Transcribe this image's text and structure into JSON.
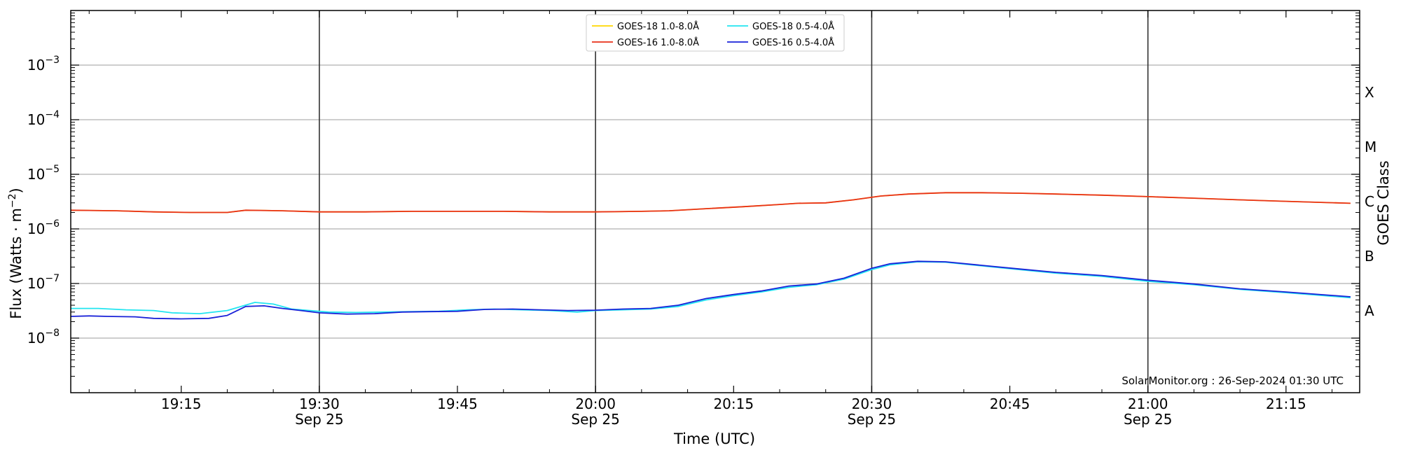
{
  "chart_data": {
    "type": "line",
    "title": "",
    "xlabel": "Time (UTC)",
    "ylabel": "Flux (Watts · m⁻²)",
    "y2label": "GOES Class",
    "credit": "SolarMonitor.org : 26-Sep-2024 01:30 UTC",
    "y_scale": "log",
    "ylim": [
      1e-09,
      0.01
    ],
    "xlim": [
      "19:03",
      "21:23"
    ],
    "grid": "horizontal at each decade",
    "legend_position": "top-center",
    "y_ticks": [
      {
        "value": 1e-08,
        "label": "10",
        "exp": "−8"
      },
      {
        "value": 1e-07,
        "label": "10",
        "exp": "−7"
      },
      {
        "value": 1e-06,
        "label": "10",
        "exp": "−6"
      },
      {
        "value": 1e-05,
        "label": "10",
        "exp": "−5"
      },
      {
        "value": 0.0001,
        "label": "10",
        "exp": "−4"
      },
      {
        "value": 0.001,
        "label": "10",
        "exp": "−3"
      }
    ],
    "x_ticks": [
      {
        "time": "19:15",
        "label": "19:15",
        "sub": ""
      },
      {
        "time": "19:30",
        "label": "19:30",
        "sub": "Sep 25"
      },
      {
        "time": "19:45",
        "label": "19:45",
        "sub": ""
      },
      {
        "time": "20:00",
        "label": "20:00",
        "sub": "Sep 25"
      },
      {
        "time": "20:15",
        "label": "20:15",
        "sub": ""
      },
      {
        "time": "20:30",
        "label": "20:30",
        "sub": "Sep 25"
      },
      {
        "time": "20:45",
        "label": "20:45",
        "sub": ""
      },
      {
        "time": "21:00",
        "label": "21:00",
        "sub": "Sep 25"
      },
      {
        "time": "21:15",
        "label": "21:15",
        "sub": ""
      }
    ],
    "vertical_markers": [
      "19:30",
      "20:00",
      "20:30",
      "21:00"
    ],
    "goes_classes": [
      {
        "label": "A",
        "value": 3.16e-08
      },
      {
        "label": "B",
        "value": 3.16e-07
      },
      {
        "label": "C",
        "value": 3.16e-06
      },
      {
        "label": "M",
        "value": 3.16e-05
      },
      {
        "label": "X",
        "value": 0.000316
      }
    ],
    "series": [
      {
        "name": "GOES-18 1.0-8.0Å",
        "color": "#ffd700",
        "points": [
          [
            "19:03",
            2.2e-06
          ],
          [
            "19:08",
            2.15e-06
          ],
          [
            "19:12",
            2.05e-06
          ],
          [
            "19:16",
            2e-06
          ],
          [
            "19:20",
            2e-06
          ],
          [
            "19:22",
            2.2e-06
          ],
          [
            "19:26",
            2.15e-06
          ],
          [
            "19:30",
            2.05e-06
          ],
          [
            "19:35",
            2.05e-06
          ],
          [
            "19:40",
            2.1e-06
          ],
          [
            "19:45",
            2.1e-06
          ],
          [
            "19:50",
            2.1e-06
          ],
          [
            "19:55",
            2.05e-06
          ],
          [
            "20:00",
            2.05e-06
          ],
          [
            "20:05",
            2.1e-06
          ],
          [
            "20:08",
            2.15e-06
          ],
          [
            "20:12",
            2.35e-06
          ],
          [
            "20:16",
            2.55e-06
          ],
          [
            "20:20",
            2.8e-06
          ],
          [
            "20:22",
            2.95e-06
          ],
          [
            "20:25",
            3e-06
          ],
          [
            "20:28",
            3.4e-06
          ],
          [
            "20:31",
            4e-06
          ],
          [
            "20:34",
            4.35e-06
          ],
          [
            "20:38",
            4.6e-06
          ],
          [
            "20:42",
            4.6e-06
          ],
          [
            "20:46",
            4.5e-06
          ],
          [
            "20:50",
            4.35e-06
          ],
          [
            "20:55",
            4.15e-06
          ],
          [
            "21:00",
            3.9e-06
          ],
          [
            "21:05",
            3.65e-06
          ],
          [
            "21:10",
            3.4e-06
          ],
          [
            "21:15",
            3.2e-06
          ],
          [
            "21:22",
            2.95e-06
          ]
        ]
      },
      {
        "name": "GOES-16 1.0-8.0Å",
        "color": "#e8311a",
        "points": [
          [
            "19:03",
            2.2e-06
          ],
          [
            "19:08",
            2.15e-06
          ],
          [
            "19:12",
            2.05e-06
          ],
          [
            "19:16",
            2e-06
          ],
          [
            "19:20",
            2e-06
          ],
          [
            "19:22",
            2.2e-06
          ],
          [
            "19:26",
            2.15e-06
          ],
          [
            "19:30",
            2.05e-06
          ],
          [
            "19:35",
            2.05e-06
          ],
          [
            "19:40",
            2.1e-06
          ],
          [
            "19:45",
            2.1e-06
          ],
          [
            "19:50",
            2.1e-06
          ],
          [
            "19:55",
            2.05e-06
          ],
          [
            "20:00",
            2.05e-06
          ],
          [
            "20:05",
            2.1e-06
          ],
          [
            "20:08",
            2.15e-06
          ],
          [
            "20:12",
            2.35e-06
          ],
          [
            "20:16",
            2.55e-06
          ],
          [
            "20:20",
            2.8e-06
          ],
          [
            "20:22",
            2.95e-06
          ],
          [
            "20:25",
            3e-06
          ],
          [
            "20:28",
            3.4e-06
          ],
          [
            "20:31",
            4e-06
          ],
          [
            "20:34",
            4.35e-06
          ],
          [
            "20:38",
            4.6e-06
          ],
          [
            "20:42",
            4.6e-06
          ],
          [
            "20:46",
            4.5e-06
          ],
          [
            "20:50",
            4.35e-06
          ],
          [
            "20:55",
            4.15e-06
          ],
          [
            "21:00",
            3.9e-06
          ],
          [
            "21:05",
            3.65e-06
          ],
          [
            "21:10",
            3.4e-06
          ],
          [
            "21:15",
            3.2e-06
          ],
          [
            "21:22",
            2.95e-06
          ]
        ]
      },
      {
        "name": "GOES-18 0.5-4.0Å",
        "color": "#22e5f0",
        "points": [
          [
            "19:03",
            3.5e-08
          ],
          [
            "19:06",
            3.5e-08
          ],
          [
            "19:09",
            3.3e-08
          ],
          [
            "19:12",
            3.2e-08
          ],
          [
            "19:14",
            2.9e-08
          ],
          [
            "19:17",
            2.8e-08
          ],
          [
            "19:20",
            3.2e-08
          ],
          [
            "19:23",
            4.5e-08
          ],
          [
            "19:25",
            4.2e-08
          ],
          [
            "19:27",
            3.4e-08
          ],
          [
            "19:29",
            3.2e-08
          ],
          [
            "19:31",
            3e-08
          ],
          [
            "19:34",
            2.95e-08
          ],
          [
            "19:37",
            3e-08
          ],
          [
            "19:40",
            3.05e-08
          ],
          [
            "19:43",
            3.1e-08
          ],
          [
            "19:46",
            3.3e-08
          ],
          [
            "19:49",
            3.4e-08
          ],
          [
            "19:52",
            3.3e-08
          ],
          [
            "19:55",
            3.2e-08
          ],
          [
            "19:58",
            3e-08
          ],
          [
            "20:00",
            3.2e-08
          ],
          [
            "20:03",
            3.3e-08
          ],
          [
            "20:06",
            3.4e-08
          ],
          [
            "20:09",
            3.8e-08
          ],
          [
            "20:12",
            5e-08
          ],
          [
            "20:15",
            6e-08
          ],
          [
            "20:18",
            7e-08
          ],
          [
            "20:21",
            8.5e-08
          ],
          [
            "20:24",
            9.5e-08
          ],
          [
            "20:27",
            1.2e-07
          ],
          [
            "20:30",
            1.8e-07
          ],
          [
            "20:32",
            2.2e-07
          ],
          [
            "20:35",
            2.5e-07
          ],
          [
            "20:38",
            2.45e-07
          ],
          [
            "20:42",
            2.1e-07
          ],
          [
            "20:46",
            1.8e-07
          ],
          [
            "20:50",
            1.55e-07
          ],
          [
            "20:55",
            1.35e-07
          ],
          [
            "21:00",
            1.1e-07
          ],
          [
            "21:05",
            9.5e-08
          ],
          [
            "21:10",
            7.8e-08
          ],
          [
            "21:15",
            6.8e-08
          ],
          [
            "21:22",
            5.5e-08
          ]
        ]
      },
      {
        "name": "GOES-16 0.5-4.0Å",
        "color": "#1a22d8",
        "points": [
          [
            "19:03",
            2.5e-08
          ],
          [
            "19:05",
            2.55e-08
          ],
          [
            "19:07",
            2.5e-08
          ],
          [
            "19:10",
            2.45e-08
          ],
          [
            "19:12",
            2.3e-08
          ],
          [
            "19:15",
            2.25e-08
          ],
          [
            "19:18",
            2.3e-08
          ],
          [
            "19:20",
            2.6e-08
          ],
          [
            "19:22",
            3.8e-08
          ],
          [
            "19:24",
            3.9e-08
          ],
          [
            "19:26",
            3.5e-08
          ],
          [
            "19:28",
            3.2e-08
          ],
          [
            "19:30",
            2.9e-08
          ],
          [
            "19:33",
            2.75e-08
          ],
          [
            "19:36",
            2.8e-08
          ],
          [
            "19:39",
            3e-08
          ],
          [
            "19:42",
            3.05e-08
          ],
          [
            "19:45",
            3.1e-08
          ],
          [
            "19:48",
            3.35e-08
          ],
          [
            "19:51",
            3.4e-08
          ],
          [
            "19:54",
            3.3e-08
          ],
          [
            "19:57",
            3.2e-08
          ],
          [
            "20:00",
            3.25e-08
          ],
          [
            "20:03",
            3.4e-08
          ],
          [
            "20:06",
            3.5e-08
          ],
          [
            "20:09",
            4e-08
          ],
          [
            "20:12",
            5.3e-08
          ],
          [
            "20:15",
            6.3e-08
          ],
          [
            "20:18",
            7.3e-08
          ],
          [
            "20:21",
            9e-08
          ],
          [
            "20:24",
            9.8e-08
          ],
          [
            "20:27",
            1.25e-07
          ],
          [
            "20:30",
            1.9e-07
          ],
          [
            "20:32",
            2.3e-07
          ],
          [
            "20:35",
            2.55e-07
          ],
          [
            "20:38",
            2.5e-07
          ],
          [
            "20:42",
            2.15e-07
          ],
          [
            "20:46",
            1.85e-07
          ],
          [
            "20:50",
            1.6e-07
          ],
          [
            "20:55",
            1.4e-07
          ],
          [
            "21:00",
            1.15e-07
          ],
          [
            "21:05",
            9.8e-08
          ],
          [
            "21:10",
            8e-08
          ],
          [
            "21:15",
            7e-08
          ],
          [
            "21:22",
            5.7e-08
          ]
        ]
      }
    ]
  }
}
